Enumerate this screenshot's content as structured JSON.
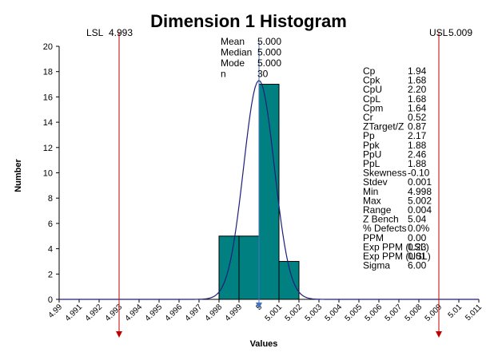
{
  "chart_data": {
    "type": "bar",
    "title": "Dimension 1 Histogram",
    "xlabel": "Values",
    "ylabel": "Number",
    "ylim": [
      0,
      20
    ],
    "yticks": [
      "0",
      "2",
      "4",
      "6",
      "8",
      "10",
      "12",
      "14",
      "16",
      "18",
      "20"
    ],
    "xlim": [
      4.99,
      5.011
    ],
    "xticks": [
      "4.99",
      "4.991",
      "4.992",
      "4.993",
      "4.994",
      "4.995",
      "4.996",
      "4.997",
      "4.998",
      "4.999",
      "5",
      "5.001",
      "5.002",
      "5.003",
      "5.004",
      "5.005",
      "5.006",
      "5.007",
      "5.008",
      "5.009",
      "5.01",
      "5.011"
    ],
    "bars": [
      {
        "start": 4.998,
        "end": 4.999,
        "value": 5
      },
      {
        "start": 4.999,
        "end": 5.0,
        "value": 5
      },
      {
        "start": 5.0,
        "end": 5.001,
        "value": 17
      },
      {
        "start": 5.001,
        "end": 5.002,
        "value": 3
      }
    ],
    "normal_curve": {
      "mean": 5.0,
      "sigma": 0.000767,
      "peak": 17.3
    },
    "spec_limits": {
      "lsl": {
        "label": "LSL",
        "value_text": "4.993",
        "value": 4.993
      },
      "usl": {
        "label": "USL",
        "value_text": "5.009",
        "value": 5.009
      }
    },
    "mean_line": {
      "value": 5.0
    },
    "summary_stats": [
      {
        "label": "Mean",
        "value": "5.000"
      },
      {
        "label": "Median",
        "value": "5.000"
      },
      {
        "label": "Mode",
        "value": "5.000"
      },
      {
        "label": "n",
        "value": "30"
      }
    ],
    "capability_stats": [
      {
        "label": "Cp",
        "value": "1.94"
      },
      {
        "label": "Cpk",
        "value": "1.68"
      },
      {
        "label": "CpU",
        "value": "2.20"
      },
      {
        "label": "CpL",
        "value": "1.68"
      },
      {
        "label": "Cpm",
        "value": "1.64"
      },
      {
        "label": "Cr",
        "value": "0.52"
      },
      {
        "label": "ZTarget/Z",
        "value": "0.87",
        "highlight": true
      },
      {
        "label": "Pp",
        "value": "2.17"
      },
      {
        "label": "Ppk",
        "value": "1.88"
      },
      {
        "label": "PpU",
        "value": "2.46"
      },
      {
        "label": "PpL",
        "value": "1.88"
      },
      {
        "label": "Skewness",
        "value": "-0.10"
      },
      {
        "label": "Stdev",
        "value": "0.001"
      },
      {
        "label": "Min",
        "value": "4.998"
      },
      {
        "label": "Max",
        "value": "5.002"
      },
      {
        "label": "Range",
        "value": "0.004"
      },
      {
        "label": "Z Bench",
        "value": "5.04"
      },
      {
        "label": "% Defects",
        "value": "0.0%"
      },
      {
        "label": "PPM",
        "value": "0.00"
      },
      {
        "label": "Exp PPM (LSL)",
        "value": "0.23"
      },
      {
        "label": "Exp PPM (USL)",
        "value": "0.01"
      },
      {
        "label": "Sigma",
        "value": "6.00"
      }
    ],
    "grid": false,
    "colors": {
      "bar_fill": "#008080",
      "bar_stroke": "#000000",
      "curve": "#1f1f7a",
      "limit_line": "#c00000",
      "mean_line": "#4472c4",
      "highlight_text": "#c00000"
    }
  }
}
